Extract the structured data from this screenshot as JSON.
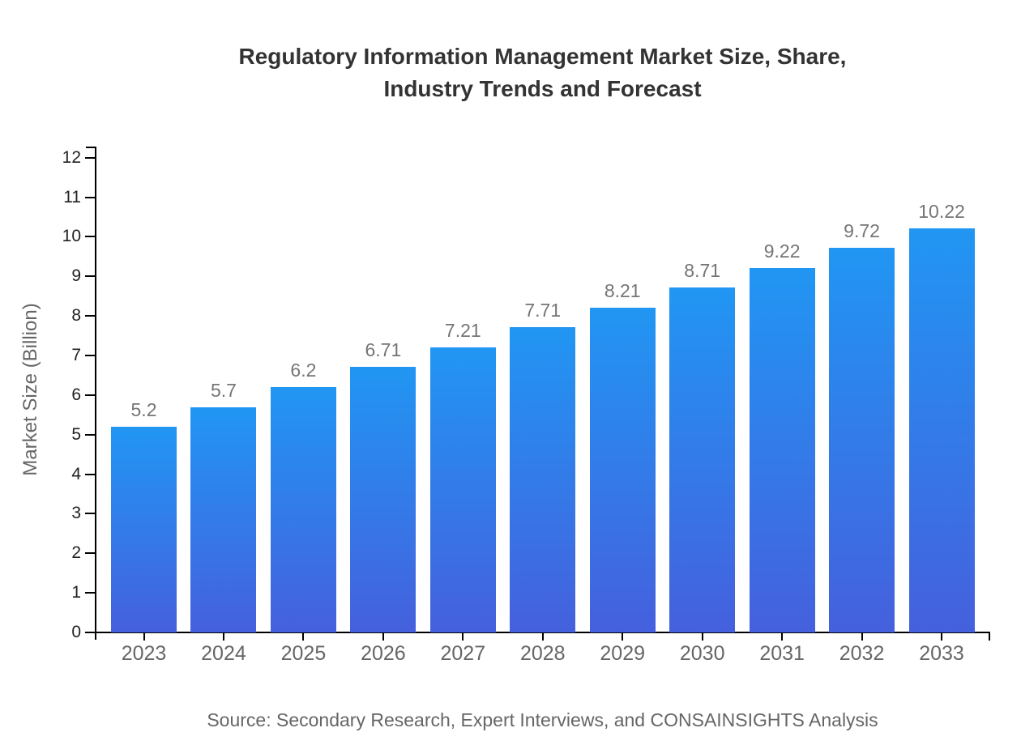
{
  "header": {
    "title_line1": "Regulatory Information Management Market Size, Share,",
    "title_line2": "Industry Trends and Forecast"
  },
  "chart_data": {
    "type": "bar",
    "title": "Regulatory Information Management Market Size, Share, Industry Trends and Forecast",
    "categories": [
      "2023",
      "2024",
      "2025",
      "2026",
      "2027",
      "2028",
      "2029",
      "2030",
      "2031",
      "2032",
      "2033"
    ],
    "values": [
      5.2,
      5.7,
      6.2,
      6.71,
      7.21,
      7.71,
      8.21,
      8.71,
      9.22,
      9.72,
      10.22
    ],
    "value_labels": [
      "5.2",
      "5.7",
      "6.2",
      "6.71",
      "7.21",
      "7.71",
      "8.21",
      "8.71",
      "9.22",
      "9.72",
      "10.22"
    ],
    "xlabel": "",
    "ylabel": "Market Size (Billion)",
    "ylim": [
      0,
      12.26
    ],
    "yticks": [
      0,
      1,
      2,
      3,
      4,
      5,
      6,
      7,
      8,
      9,
      10,
      11,
      12
    ],
    "grid": false,
    "legend": null,
    "source": "Source: Secondary Research, Expert Interviews, and CONSAINSIGHTS Analysis",
    "colors": {
      "bar_gradient_top": "#2196f3",
      "bar_gradient_bottom": "#4560dd",
      "axis": "#000000",
      "title_text": "#333333",
      "y_tick_text": "#222222",
      "x_tick_text": "#666666",
      "value_label_text": "#757575",
      "source_text": "#666666"
    }
  }
}
